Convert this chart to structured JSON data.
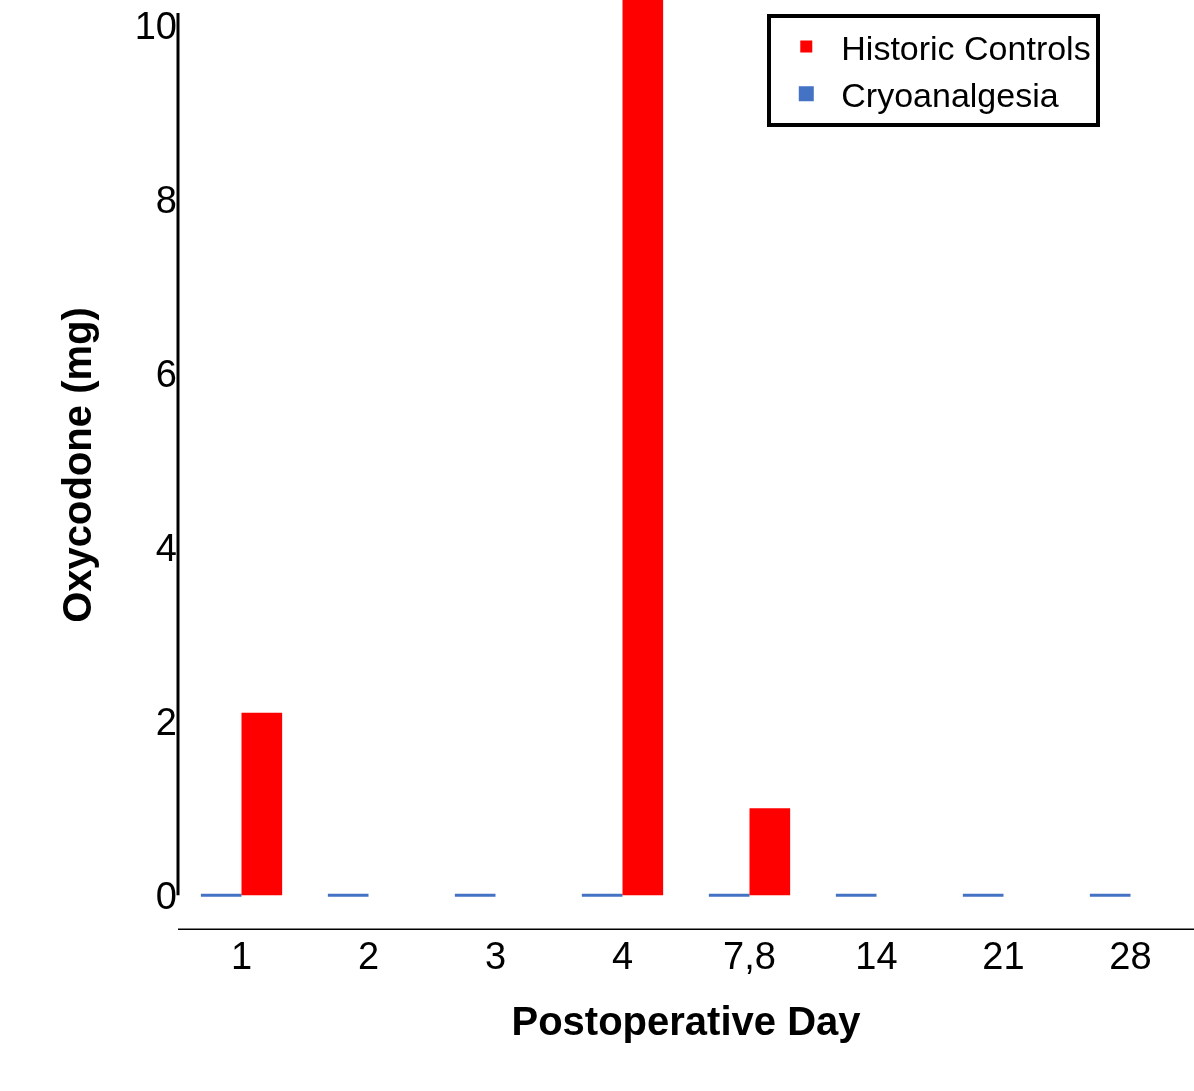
{
  "chart_data": {
    "type": "bar",
    "xlabel": "Postoperative Day",
    "ylabel": "Oxycodone (mg)",
    "categories": [
      "1",
      "2",
      "3",
      "4",
      "7,8",
      "14",
      "21",
      "28"
    ],
    "series": [
      {
        "name": "Cryoanalgesia",
        "color": "#4472c4",
        "values": [
          0,
          0,
          0,
          0,
          0,
          0,
          0,
          0
        ]
      },
      {
        "name": "Historic Controls",
        "color": "#ff0000",
        "values": [
          2.1,
          null,
          null,
          10.3,
          1.0,
          null,
          null,
          null
        ]
      }
    ],
    "ylim": [
      -0.4,
      10.3
    ],
    "yticks": [
      0,
      2,
      4,
      6,
      8,
      10
    ],
    "grid": false,
    "legend": "top right"
  }
}
